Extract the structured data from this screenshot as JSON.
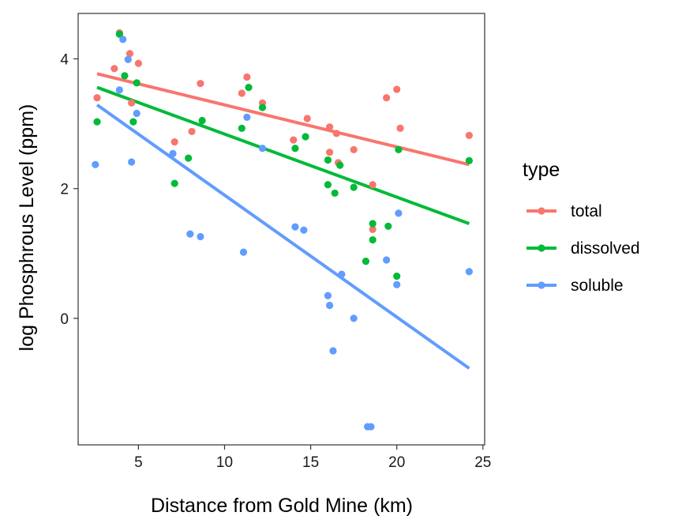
{
  "chart_data": {
    "type": "scatter",
    "xlabel": "Distance from Gold Mine (km)",
    "ylabel": "log Phosphrous Level (ppm)",
    "xlim": [
      1.5,
      25.1
    ],
    "ylim": [
      -1.95,
      4.7
    ],
    "x_ticks": [
      5,
      10,
      15,
      20,
      25
    ],
    "y_ticks": [
      0,
      2,
      4
    ],
    "grid": false,
    "legend": {
      "title": "type",
      "placement": "right"
    },
    "series": [
      {
        "name": "total",
        "color": "#F8766D",
        "points": [
          [
            2.6,
            3.4
          ],
          [
            3.6,
            3.85
          ],
          [
            3.9,
            4.4
          ],
          [
            4.5,
            4.08
          ],
          [
            4.6,
            3.32
          ],
          [
            5.0,
            3.93
          ],
          [
            7.1,
            2.72
          ],
          [
            8.1,
            2.88
          ],
          [
            8.6,
            3.62
          ],
          [
            11.0,
            3.47
          ],
          [
            11.3,
            3.72
          ],
          [
            12.2,
            3.32
          ],
          [
            14.0,
            2.75
          ],
          [
            14.8,
            3.08
          ],
          [
            16.1,
            2.95
          ],
          [
            16.1,
            2.56
          ],
          [
            16.5,
            2.85
          ],
          [
            16.6,
            2.4
          ],
          [
            17.5,
            2.6
          ],
          [
            18.6,
            2.06
          ],
          [
            18.6,
            1.37
          ],
          [
            19.4,
            3.4
          ],
          [
            20.0,
            3.53
          ],
          [
            20.2,
            2.93
          ],
          [
            24.2,
            2.82
          ]
        ],
        "trend": {
          "x": [
            2.6,
            24.2
          ],
          "y": [
            3.77,
            2.37
          ]
        }
      },
      {
        "name": "dissolved",
        "color": "#00BA38",
        "points": [
          [
            2.6,
            3.03
          ],
          [
            3.9,
            4.38
          ],
          [
            4.2,
            3.74
          ],
          [
            4.7,
            3.03
          ],
          [
            4.9,
            3.63
          ],
          [
            7.1,
            2.08
          ],
          [
            7.9,
            2.47
          ],
          [
            8.7,
            3.05
          ],
          [
            11.0,
            2.93
          ],
          [
            11.4,
            3.56
          ],
          [
            12.2,
            3.25
          ],
          [
            14.1,
            2.62
          ],
          [
            14.7,
            2.8
          ],
          [
            16.0,
            2.44
          ],
          [
            16.0,
            2.06
          ],
          [
            16.4,
            1.93
          ],
          [
            16.7,
            2.36
          ],
          [
            17.5,
            2.02
          ],
          [
            18.2,
            0.88
          ],
          [
            18.6,
            1.21
          ],
          [
            18.6,
            1.46
          ],
          [
            19.5,
            1.42
          ],
          [
            20.0,
            0.65
          ],
          [
            20.1,
            2.6
          ],
          [
            24.2,
            2.43
          ]
        ],
        "trend": {
          "x": [
            2.6,
            24.2
          ],
          "y": [
            3.56,
            1.46
          ]
        }
      },
      {
        "name": "soluble",
        "color": "#619CFF",
        "points": [
          [
            2.5,
            2.37
          ],
          [
            3.9,
            3.52
          ],
          [
            4.1,
            4.3
          ],
          [
            4.4,
            3.99
          ],
          [
            4.6,
            2.41
          ],
          [
            4.9,
            3.16
          ],
          [
            7.0,
            2.54
          ],
          [
            8.0,
            1.3
          ],
          [
            8.6,
            1.26
          ],
          [
            11.1,
            1.02
          ],
          [
            11.3,
            3.1
          ],
          [
            12.2,
            2.62
          ],
          [
            14.1,
            1.41
          ],
          [
            14.6,
            1.36
          ],
          [
            16.0,
            0.35
          ],
          [
            16.1,
            0.2
          ],
          [
            16.3,
            -0.5
          ],
          [
            16.8,
            0.68
          ],
          [
            17.5,
            0.0
          ],
          [
            18.3,
            -1.67
          ],
          [
            18.5,
            -1.67
          ],
          [
            19.4,
            0.9
          ],
          [
            20.0,
            0.52
          ],
          [
            20.1,
            1.62
          ],
          [
            24.2,
            0.72
          ]
        ],
        "trend": {
          "x": [
            2.6,
            24.2
          ],
          "y": [
            3.29,
            -0.77
          ]
        }
      }
    ]
  }
}
